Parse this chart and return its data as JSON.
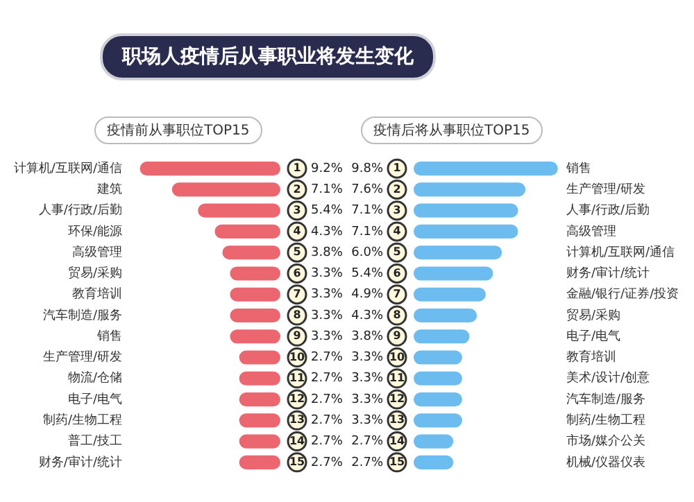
{
  "chart_data": [
    {
      "type": "bar",
      "orientation": "horizontal",
      "title": "职场人疫情后从事职业将发生变化",
      "subtitle": "疫情前从事职位TOP15",
      "categories": [
        "计算机/互联网/通信",
        "建筑",
        "人事/行政/后勤",
        "环保/能源",
        "高级管理",
        "贸易/采购",
        "教育培训",
        "汽车制造/服务",
        "销售",
        "生产管理/研发",
        "物流/仓储",
        "电子/电气",
        "制药/生物工程",
        "普工/技工",
        "财务/审计/统计"
      ],
      "values": [
        9.2,
        7.1,
        5.4,
        4.3,
        3.8,
        3.3,
        3.3,
        3.3,
        3.3,
        2.7,
        2.7,
        2.7,
        2.7,
        2.7,
        2.7
      ],
      "value_labels": [
        "9.2%",
        "7.1%",
        "5.4%",
        "4.3%",
        "3.8%",
        "3.3%",
        "3.3%",
        "3.3%",
        "3.3%",
        "2.7%",
        "2.7%",
        "2.7%",
        "2.7%",
        "2.7%",
        "2.7%"
      ],
      "annotations": [
        "1",
        "2",
        "3",
        "4",
        "5",
        "6",
        "7",
        "8",
        "9",
        "10",
        "11",
        "12",
        "13",
        "14",
        "15"
      ],
      "color": "#ec6670"
    },
    {
      "type": "bar",
      "orientation": "horizontal",
      "title": "疫情后将从事职位TOP15",
      "categories": [
        "销售",
        "生产管理/研发",
        "人事/行政/后勤",
        "高级管理",
        "计算机/互联网/通信",
        "财务/审计/统计",
        "金融/银行/证券/投资",
        "贸易/采购",
        "电子/电气",
        "教育培训",
        "美术/设计/创意",
        "汽车制造/服务",
        "制药/生物工程",
        "市场/媒介公关",
        "机械/仪器仪表"
      ],
      "values": [
        9.8,
        7.6,
        7.1,
        7.1,
        6.0,
        5.4,
        4.9,
        4.3,
        3.8,
        3.3,
        3.3,
        3.3,
        3.3,
        2.7,
        2.7
      ],
      "value_labels": [
        "9.8%",
        "7.6%",
        "7.1%",
        "7.1%",
        "6.0%",
        "5.4%",
        "4.9%",
        "4.3%",
        "3.8%",
        "3.3%",
        "3.3%",
        "3.3%",
        "3.3%",
        "2.7%",
        "2.7%"
      ],
      "annotations": [
        "1",
        "2",
        "3",
        "4",
        "5",
        "6",
        "7",
        "8",
        "9",
        "10",
        "11",
        "12",
        "13",
        "14",
        "15"
      ],
      "color": "#6cbcf0"
    }
  ]
}
